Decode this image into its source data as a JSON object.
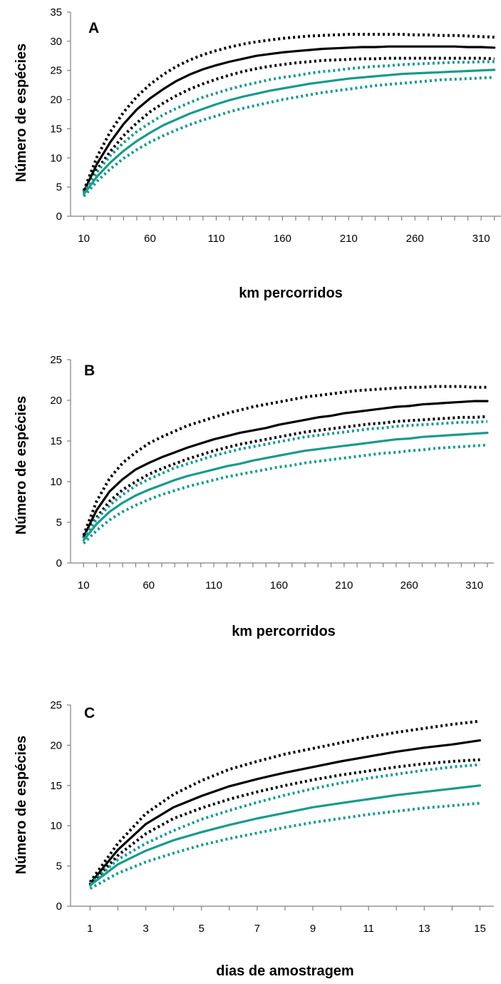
{
  "colors": {
    "black_series": "#000000",
    "teal_series": "#1a9a8c",
    "axis": "#808080"
  },
  "chart_data": [
    {
      "type": "line",
      "label": "A",
      "xlabel": "km percorridos",
      "ylabel": "Número de espécies",
      "ylim": [
        0,
        35
      ],
      "yticks": [
        0,
        5,
        10,
        15,
        20,
        25,
        30,
        35
      ],
      "xlim": [
        0,
        325
      ],
      "xticks": [
        10,
        60,
        110,
        160,
        210,
        260,
        310
      ],
      "grid": false,
      "x": [
        10,
        20,
        30,
        40,
        50,
        60,
        70,
        80,
        90,
        100,
        110,
        120,
        130,
        140,
        150,
        160,
        170,
        180,
        190,
        200,
        210,
        220,
        230,
        240,
        250,
        260,
        270,
        280,
        290,
        300,
        310,
        320
      ],
      "series": [
        {
          "style": "solid",
          "color": "black",
          "values": [
            4.2,
            9.0,
            12.7,
            15.8,
            18.3,
            20.2,
            21.8,
            23.2,
            24.3,
            25.2,
            25.9,
            26.5,
            27.0,
            27.5,
            27.8,
            28.1,
            28.3,
            28.5,
            28.7,
            28.8,
            28.9,
            29.0,
            29.0,
            29.1,
            29.1,
            29.1,
            29.1,
            29.1,
            29.1,
            29.0,
            29.0,
            28.9
          ]
        },
        {
          "style": "dotted",
          "color": "black",
          "values": [
            4.4,
            10.2,
            14.5,
            17.8,
            20.5,
            22.6,
            24.3,
            25.7,
            26.8,
            27.7,
            28.4,
            29.0,
            29.5,
            29.9,
            30.2,
            30.5,
            30.7,
            30.9,
            31.0,
            31.1,
            31.2,
            31.2,
            31.2,
            31.2,
            31.2,
            31.1,
            31.1,
            31.0,
            31.0,
            30.9,
            30.8,
            30.7
          ]
        },
        {
          "style": "dotted",
          "color": "black",
          "values": [
            4.0,
            8.0,
            11.1,
            13.8,
            16.0,
            17.9,
            19.4,
            20.7,
            21.8,
            22.7,
            23.5,
            24.2,
            24.8,
            25.3,
            25.7,
            26.0,
            26.3,
            26.5,
            26.7,
            26.8,
            26.9,
            27.0,
            27.0,
            27.1,
            27.1,
            27.1,
            27.1,
            27.1,
            27.1,
            27.1,
            27.1,
            27.0
          ]
        },
        {
          "style": "solid",
          "color": "teal",
          "values": [
            3.8,
            6.8,
            9.2,
            11.2,
            12.9,
            14.3,
            15.6,
            16.6,
            17.6,
            18.4,
            19.2,
            19.9,
            20.5,
            21.0,
            21.5,
            21.9,
            22.3,
            22.7,
            23.0,
            23.3,
            23.6,
            23.8,
            24.0,
            24.2,
            24.4,
            24.5,
            24.6,
            24.7,
            24.8,
            24.9,
            25.0,
            25.1
          ]
        },
        {
          "style": "dotted",
          "color": "teal",
          "values": [
            4.0,
            7.6,
            10.4,
            12.6,
            14.5,
            16.0,
            17.4,
            18.5,
            19.5,
            20.4,
            21.1,
            21.8,
            22.4,
            22.9,
            23.4,
            23.8,
            24.1,
            24.5,
            24.8,
            25.0,
            25.3,
            25.5,
            25.7,
            25.8,
            26.0,
            26.1,
            26.2,
            26.3,
            26.4,
            26.4,
            26.5,
            26.5
          ]
        },
        {
          "style": "dotted",
          "color": "teal",
          "values": [
            3.4,
            6.0,
            8.1,
            9.9,
            11.4,
            12.7,
            13.8,
            14.8,
            15.7,
            16.5,
            17.2,
            17.9,
            18.5,
            19.0,
            19.5,
            20.0,
            20.4,
            20.8,
            21.2,
            21.5,
            21.8,
            22.1,
            22.4,
            22.6,
            22.8,
            23.0,
            23.2,
            23.4,
            23.5,
            23.6,
            23.7,
            23.8
          ]
        }
      ]
    },
    {
      "type": "line",
      "label": "B",
      "xlabel": "km percorridos",
      "ylabel": "Número de espécies",
      "ylim": [
        0,
        25
      ],
      "yticks": [
        0,
        5,
        10,
        15,
        20,
        25
      ],
      "xlim": [
        0,
        325
      ],
      "xticks": [
        10,
        60,
        110,
        160,
        210,
        260,
        310
      ],
      "grid": false,
      "x": [
        10,
        20,
        30,
        40,
        50,
        60,
        70,
        80,
        90,
        100,
        110,
        120,
        130,
        140,
        150,
        160,
        170,
        180,
        190,
        200,
        210,
        220,
        230,
        240,
        250,
        260,
        270,
        280,
        290,
        300,
        310,
        320
      ],
      "series": [
        {
          "style": "solid",
          "color": "black",
          "values": [
            3.2,
            6.5,
            8.8,
            10.3,
            11.5,
            12.3,
            13.0,
            13.6,
            14.2,
            14.7,
            15.2,
            15.6,
            16.0,
            16.3,
            16.6,
            17.0,
            17.3,
            17.6,
            17.9,
            18.1,
            18.4,
            18.6,
            18.8,
            19.0,
            19.2,
            19.3,
            19.5,
            19.6,
            19.7,
            19.8,
            19.9,
            19.9
          ]
        },
        {
          "style": "dotted",
          "color": "black",
          "values": [
            3.4,
            7.6,
            10.4,
            12.3,
            13.6,
            14.7,
            15.5,
            16.2,
            16.9,
            17.4,
            17.9,
            18.4,
            18.8,
            19.2,
            19.5,
            19.8,
            20.1,
            20.4,
            20.6,
            20.8,
            21.0,
            21.2,
            21.3,
            21.4,
            21.5,
            21.6,
            21.6,
            21.7,
            21.7,
            21.7,
            21.6,
            21.6
          ]
        },
        {
          "style": "dotted",
          "color": "black",
          "values": [
            3.0,
            5.6,
            7.6,
            9.0,
            10.0,
            10.9,
            11.6,
            12.2,
            12.8,
            13.3,
            13.8,
            14.2,
            14.6,
            14.9,
            15.2,
            15.5,
            15.8,
            16.1,
            16.3,
            16.5,
            16.7,
            16.9,
            17.1,
            17.2,
            17.4,
            17.5,
            17.6,
            17.7,
            17.8,
            17.9,
            17.9,
            18.0
          ]
        },
        {
          "style": "solid",
          "color": "teal",
          "values": [
            2.8,
            4.8,
            6.3,
            7.4,
            8.3,
            9.0,
            9.6,
            10.2,
            10.7,
            11.1,
            11.5,
            11.9,
            12.2,
            12.6,
            12.9,
            13.2,
            13.5,
            13.8,
            14.0,
            14.2,
            14.4,
            14.6,
            14.8,
            15.0,
            15.2,
            15.3,
            15.5,
            15.6,
            15.7,
            15.8,
            15.9,
            16.0
          ]
        },
        {
          "style": "dotted",
          "color": "teal",
          "values": [
            3.0,
            5.4,
            7.1,
            8.4,
            9.5,
            10.3,
            11.0,
            11.7,
            12.2,
            12.7,
            13.2,
            13.6,
            14.0,
            14.3,
            14.6,
            14.9,
            15.2,
            15.5,
            15.7,
            15.9,
            16.1,
            16.3,
            16.5,
            16.6,
            16.8,
            16.9,
            17.0,
            17.1,
            17.2,
            17.3,
            17.3,
            17.4
          ]
        },
        {
          "style": "dotted",
          "color": "teal",
          "values": [
            2.4,
            4.0,
            5.3,
            6.3,
            7.1,
            7.8,
            8.4,
            8.9,
            9.4,
            9.8,
            10.2,
            10.6,
            10.9,
            11.2,
            11.5,
            11.8,
            12.0,
            12.3,
            12.5,
            12.7,
            12.9,
            13.1,
            13.3,
            13.5,
            13.6,
            13.8,
            13.9,
            14.1,
            14.2,
            14.3,
            14.4,
            14.5
          ]
        }
      ]
    },
    {
      "type": "line",
      "label": "C",
      "xlabel": "dias de amostragem",
      "ylabel": "Número de espécies",
      "ylim": [
        0,
        25
      ],
      "yticks": [
        0,
        5,
        10,
        15,
        20,
        25
      ],
      "xlim": [
        0.3,
        15.5
      ],
      "xticks": [
        1,
        3,
        5,
        7,
        9,
        11,
        13,
        15
      ],
      "grid": false,
      "x": [
        1,
        2,
        3,
        4,
        5,
        6,
        7,
        8,
        9,
        10,
        11,
        12,
        13,
        14,
        15
      ],
      "series": [
        {
          "style": "solid",
          "color": "black",
          "values": [
            2.8,
            7.0,
            10.2,
            12.3,
            13.7,
            14.9,
            15.8,
            16.6,
            17.3,
            18.0,
            18.6,
            19.2,
            19.7,
            20.1,
            20.6
          ]
        },
        {
          "style": "dotted",
          "color": "black",
          "values": [
            3.0,
            7.8,
            11.5,
            13.9,
            15.6,
            17.0,
            18.0,
            18.9,
            19.6,
            20.3,
            21.0,
            21.6,
            22.1,
            22.6,
            23.0
          ]
        },
        {
          "style": "dotted",
          "color": "black",
          "values": [
            2.6,
            6.3,
            9.0,
            10.9,
            12.2,
            13.3,
            14.2,
            15.0,
            15.7,
            16.3,
            16.8,
            17.3,
            17.7,
            18.0,
            18.2
          ]
        },
        {
          "style": "solid",
          "color": "teal",
          "values": [
            2.6,
            5.2,
            6.9,
            8.2,
            9.2,
            10.1,
            10.9,
            11.6,
            12.3,
            12.8,
            13.3,
            13.8,
            14.2,
            14.6,
            15.0
          ]
        },
        {
          "style": "dotted",
          "color": "teal",
          "values": [
            2.8,
            5.8,
            7.8,
            9.4,
            10.8,
            11.9,
            12.9,
            13.8,
            14.6,
            15.3,
            15.9,
            16.4,
            16.9,
            17.3,
            17.6
          ]
        },
        {
          "style": "dotted",
          "color": "teal",
          "values": [
            2.2,
            4.1,
            5.5,
            6.6,
            7.6,
            8.4,
            9.1,
            9.8,
            10.4,
            10.9,
            11.4,
            11.8,
            12.2,
            12.5,
            12.8
          ]
        }
      ]
    }
  ]
}
